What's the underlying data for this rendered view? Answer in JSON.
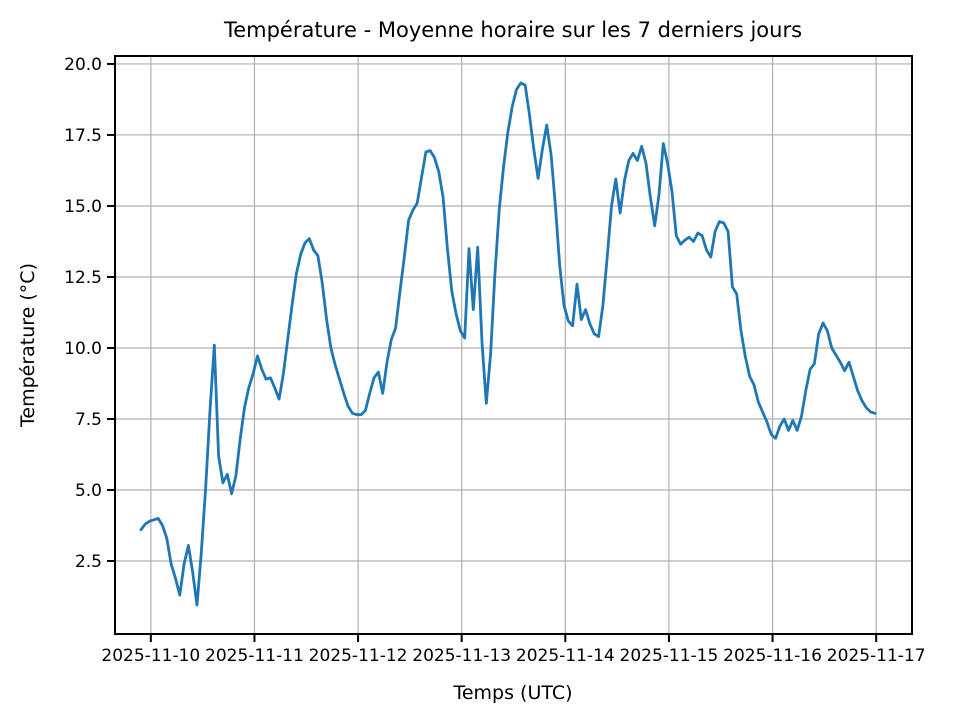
{
  "chart_data": {
    "type": "line",
    "title": "Température - Moyenne horaire sur les 7 derniers jours",
    "xlabel": "Temps (UTC)",
    "ylabel": "Température (°C)",
    "legend": null,
    "grid": true,
    "line_color": "#1f77b4",
    "grid_color": "#b0b0b0",
    "spine_color": "#000000",
    "x_tick_labels": [
      "2025-11-10",
      "2025-11-11",
      "2025-11-12",
      "2025-11-13",
      "2025-11-14",
      "2025-11-15",
      "2025-11-16",
      "2025-11-17"
    ],
    "x_tick_hours": [
      2.3,
      26.3,
      50.3,
      74.3,
      98.3,
      122.3,
      146.3,
      170.3
    ],
    "y_ticks": [
      2.5,
      5.0,
      7.5,
      10.0,
      12.5,
      15.0,
      17.5,
      20.0
    ],
    "y_tick_labels": [
      "2.5",
      "5.0",
      "7.5",
      "10.0",
      "12.5",
      "15.0",
      "17.5",
      "20.0"
    ],
    "xlim_hours": [
      -6.0,
      178.6
    ],
    "ylim": [
      -0.07,
      20.28
    ],
    "x_unit": "hours since first sample (hourly means, ~2025-11-09 22:00 to 2025-11-17 00:00 UTC)",
    "values": [
      3.6,
      3.8,
      3.9,
      3.95,
      4.0,
      3.75,
      3.3,
      2.4,
      1.9,
      1.3,
      2.4,
      3.05,
      2.1,
      0.95,
      2.8,
      5.1,
      7.8,
      10.1,
      6.2,
      5.25,
      5.55,
      4.87,
      5.5,
      6.8,
      7.9,
      8.6,
      9.1,
      9.72,
      9.25,
      8.9,
      8.95,
      8.6,
      8.2,
      9.1,
      10.3,
      11.5,
      12.6,
      13.3,
      13.7,
      13.85,
      13.45,
      13.25,
      12.3,
      11.0,
      10.0,
      9.4,
      8.9,
      8.4,
      7.95,
      7.7,
      7.65,
      7.65,
      7.8,
      8.4,
      8.95,
      9.15,
      8.4,
      9.5,
      10.3,
      10.7,
      12.0,
      13.2,
      14.5,
      14.85,
      15.1,
      16.0,
      16.9,
      16.95,
      16.7,
      16.2,
      15.3,
      13.5,
      12.0,
      11.2,
      10.6,
      10.35,
      13.5,
      11.35,
      13.55,
      10.2,
      8.05,
      9.8,
      12.6,
      14.9,
      16.4,
      17.6,
      18.5,
      19.1,
      19.33,
      19.25,
      18.2,
      17.0,
      15.97,
      17.0,
      17.85,
      16.8,
      15.0,
      12.9,
      11.5,
      10.95,
      10.78,
      12.25,
      11.0,
      11.35,
      10.85,
      10.5,
      10.4,
      11.5,
      13.2,
      15.0,
      15.95,
      14.75,
      15.9,
      16.6,
      16.85,
      16.6,
      17.1,
      16.5,
      15.3,
      14.3,
      15.4,
      17.2,
      16.5,
      15.5,
      13.95,
      13.65,
      13.8,
      13.9,
      13.75,
      14.05,
      13.95,
      13.45,
      13.2,
      14.1,
      14.45,
      14.4,
      14.1,
      12.15,
      11.9,
      10.6,
      9.7,
      9.0,
      8.7,
      8.1,
      7.75,
      7.4,
      6.95,
      6.82,
      7.25,
      7.5,
      7.1,
      7.45,
      7.1,
      7.6,
      8.5,
      9.25,
      9.45,
      10.5,
      10.88,
      10.6,
      10.0,
      9.75,
      9.5,
      9.2,
      9.5,
      9.0,
      8.5,
      8.15,
      7.9,
      7.75,
      7.7
    ]
  }
}
